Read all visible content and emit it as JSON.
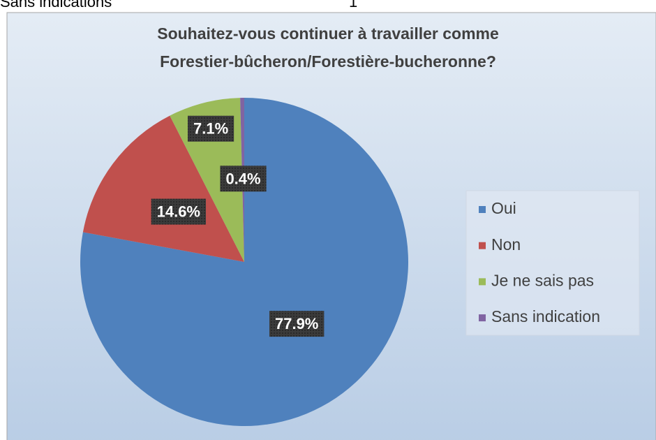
{
  "header": {
    "left": "Sans indications",
    "right": "1"
  },
  "chart_data": {
    "type": "pie",
    "title": [
      "Souhaitez-vous continuer à travailler comme",
      "Forestier-bûcheron/Forestière-bucheronne?"
    ],
    "categories": [
      "Oui",
      "Non",
      "Je ne sais pas",
      "Sans indication"
    ],
    "values": [
      77.9,
      14.6,
      7.1,
      0.4
    ],
    "value_labels": [
      "77.9%",
      "14.6%",
      "7.1%",
      "0.4%"
    ],
    "colors": [
      "#4f81bd",
      "#c0504d",
      "#9bbb59",
      "#8064a2"
    ],
    "legend": "right"
  }
}
